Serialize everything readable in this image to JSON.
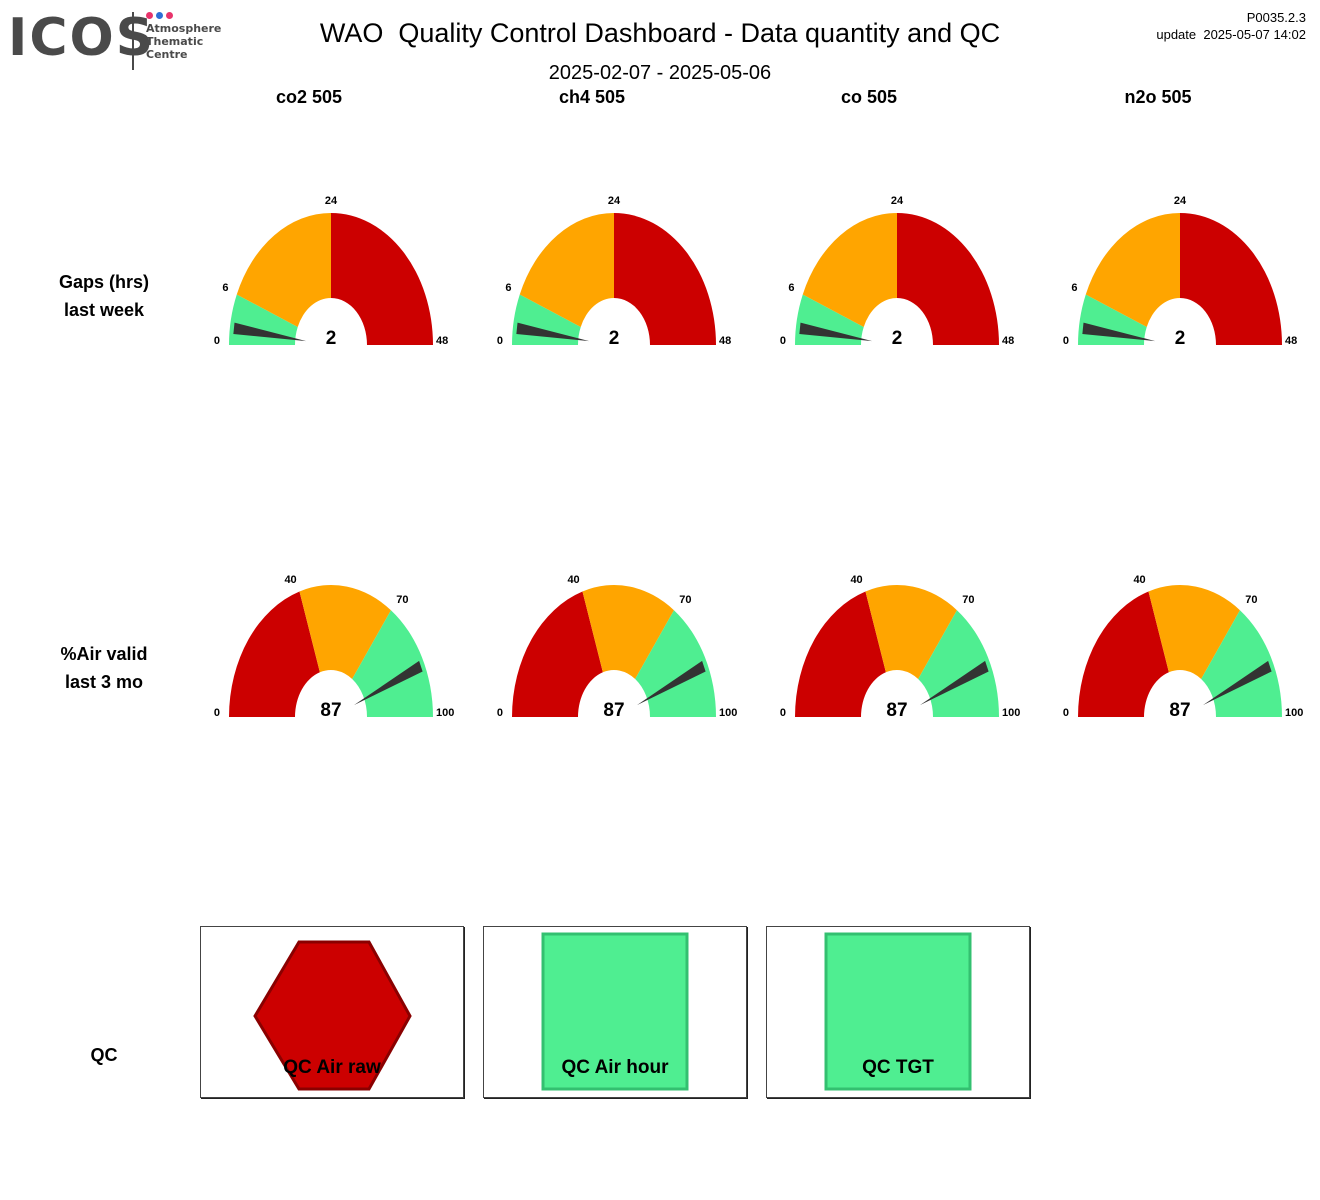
{
  "header": {
    "logo_text": "ICOS",
    "logo_sub": [
      "Atmosphere",
      "Thematic",
      "Centre"
    ],
    "title": "WAO  Quality Control Dashboard - Data quantity and QC",
    "date_range": "2025-02-07 - 2025-05-06",
    "version": "P0035.2.3",
    "update": "update  2025-05-07 14:02",
    "logo_dot_colors": [
      "#e8336b",
      "#2e6fd6",
      "#e8336b"
    ]
  },
  "columns": [
    "co2 505",
    "ch4 505",
    "co 505",
    "n2o 505"
  ],
  "rows": {
    "gaps": {
      "label_line1": "Gaps (hrs)",
      "label_line2": "last week"
    },
    "air": {
      "label_line1": "%Air valid",
      "label_line2": "last 3 mo"
    },
    "qc": {
      "label": "QC"
    }
  },
  "gauges": {
    "gaps": {
      "max_label": "48",
      "ticks": [
        "0",
        "6",
        "24",
        "48"
      ],
      "tick_values": [
        0,
        6,
        24,
        48
      ],
      "bands": [
        {
          "from": 0,
          "to": 6,
          "color": "#4fee91"
        },
        {
          "from": 6,
          "to": 24,
          "color": "#ffa500"
        },
        {
          "from": 24,
          "to": 48,
          "color": "#cc0000"
        }
      ],
      "values": [
        2,
        2,
        2,
        2
      ],
      "value_labels": [
        "2",
        "2",
        "2",
        "2"
      ]
    },
    "air": {
      "ticks": [
        "0",
        "40",
        "70",
        "100"
      ],
      "tick_values": [
        0,
        40,
        70,
        100
      ],
      "bands": [
        {
          "from": 0,
          "to": 40,
          "color": "#cc0000"
        },
        {
          "from": 40,
          "to": 70,
          "color": "#ffa500"
        },
        {
          "from": 70,
          "to": 100,
          "color": "#4fee91"
        }
      ],
      "values": [
        87,
        87,
        87,
        87
      ],
      "value_labels": [
        "87",
        "87",
        "87",
        "87"
      ]
    }
  },
  "qc_indicators": [
    {
      "label": "QC Air raw",
      "shape": "hexagon",
      "status": "bad",
      "color": "#cc0000"
    },
    {
      "label": "QC Air hour",
      "shape": "square",
      "status": "good",
      "color": "#4fee91"
    },
    {
      "label": "QC TGT",
      "shape": "square",
      "status": "good",
      "color": "#4fee91"
    }
  ],
  "colors": {
    "needle": "#333333"
  }
}
